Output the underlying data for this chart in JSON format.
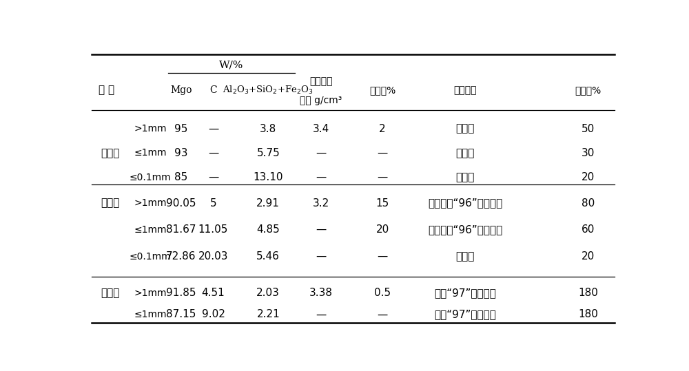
{
  "bg_color": "#ffffff",
  "rows": [
    {
      "method": "",
      "size": ">1mm",
      "mgo": "95",
      "c": "—",
      "al": "3.8",
      "density": "3.4",
      "fake": "2",
      "usage": "降　级",
      "addon": "50"
    },
    {
      "method": "烧失法",
      "size": "≤1mm",
      "mgo": "93",
      "c": "—",
      "al": "5.75",
      "density": "—",
      "fake": "—",
      "usage": "降　级",
      "addon": "30"
    },
    {
      "method": "",
      "size": "≤0.1mm",
      "mgo": "85",
      "c": "—",
      "al": "13.10",
      "density": "—",
      "fake": "—",
      "usage": "降　级",
      "addon": "20"
    },
    {
      "method": "免烧法",
      "size": ">1mm",
      "mgo": "90.05",
      "c": "5",
      "al": "2.91",
      "density": "3.2",
      "fake": "15",
      "usage": "部分替代“96”电燺镁砂",
      "addon": "80"
    },
    {
      "method": "",
      "size": "≤1mm",
      "mgo": "81.67",
      "c": "11.05",
      "al": "4.85",
      "density": "—",
      "fake": "20",
      "usage": "部分替代“96”电燺镁砂",
      "addon": "60"
    },
    {
      "method": "",
      "size": "≤0.1mm",
      "mgo": "72.86",
      "c": "20.03",
      "al": "5.46",
      "density": "—",
      "fake": "—",
      "usage": "降　级",
      "addon": "20"
    },
    {
      "method": "本发明",
      "size": ">1mm",
      "mgo": "91.85",
      "c": "4.51",
      "al": "2.03",
      "density": "3.38",
      "fake": "0.5",
      "usage": "替代“97”电燺镁砂",
      "addon": "180"
    },
    {
      "method": "",
      "size": "≤1mm",
      "mgo": "87.15",
      "c": "9.02",
      "al": "2.21",
      "density": "—",
      "fake": "—",
      "usage": "替代“97”电燺镁砂",
      "addon": "180"
    }
  ],
  "item_header": "项 目",
  "col_x": {
    "method": 0.028,
    "size": 0.105,
    "mgo": 0.178,
    "c": 0.238,
    "al": 0.316,
    "density": 0.44,
    "fake": 0.555,
    "usage": 0.71,
    "addon": 0.94
  },
  "line_color": "#000000",
  "font_size": 11.0,
  "font_size_small": 10.0
}
